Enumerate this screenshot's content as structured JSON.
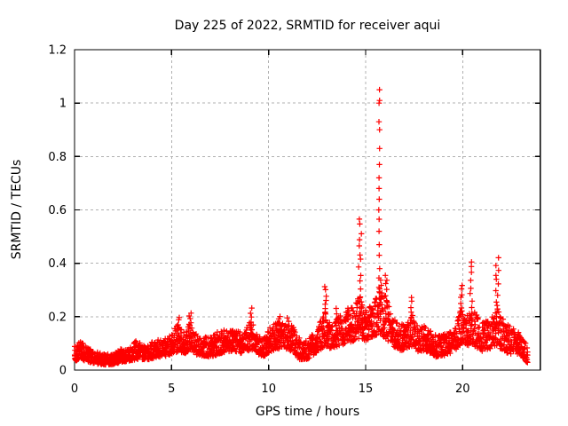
{
  "page": {
    "background_color": "#ffffff",
    "text_color": "#000000"
  },
  "chart_data": {
    "type": "scatter",
    "title": "Day 225 of 2022, SRMTID for receiver aqui",
    "xlabel": "GPS time / hours",
    "ylabel": "SRMTID / TECUs",
    "xlim": [
      0,
      24
    ],
    "ylim": [
      0,
      1.2
    ],
    "grid": true,
    "legend": "none",
    "marker": "plus",
    "marker_color": "#ff0000",
    "grid_color": "#b0b0b0",
    "axis_color": "#000000",
    "xticks": [
      {
        "value": 0,
        "label": "0"
      },
      {
        "value": 5,
        "label": "5"
      },
      {
        "value": 10,
        "label": "10"
      },
      {
        "value": 15,
        "label": "15"
      },
      {
        "value": 20,
        "label": "20"
      }
    ],
    "yticks": [
      {
        "value": 0,
        "label": "0"
      },
      {
        "value": 0.2,
        "label": "0.2"
      },
      {
        "value": 0.4,
        "label": "0.4"
      },
      {
        "value": 0.6,
        "label": "0.6"
      },
      {
        "value": 0.8,
        "label": "0.8"
      },
      {
        "value": 1,
        "label": "1"
      },
      {
        "value": 1.2,
        "label": "1.2"
      }
    ],
    "data_start_hour": 0,
    "data_end_hour": 23.35,
    "sample_step_hours": 0.02,
    "envelope": [
      [
        0.0,
        0.03,
        0.09
      ],
      [
        0.3,
        0.04,
        0.11
      ],
      [
        0.6,
        0.03,
        0.09
      ],
      [
        1.0,
        0.025,
        0.07
      ],
      [
        1.5,
        0.02,
        0.06
      ],
      [
        2.0,
        0.02,
        0.06
      ],
      [
        2.4,
        0.03,
        0.08
      ],
      [
        2.8,
        0.03,
        0.08
      ],
      [
        3.15,
        0.04,
        0.11
      ],
      [
        3.5,
        0.04,
        0.1
      ],
      [
        3.9,
        0.04,
        0.1
      ],
      [
        4.3,
        0.05,
        0.12
      ],
      [
        4.7,
        0.05,
        0.12
      ],
      [
        5.0,
        0.06,
        0.14
      ],
      [
        5.35,
        0.07,
        0.18
      ],
      [
        5.6,
        0.06,
        0.14
      ],
      [
        5.95,
        0.07,
        0.19
      ],
      [
        6.2,
        0.06,
        0.14
      ],
      [
        6.6,
        0.05,
        0.12
      ],
      [
        7.0,
        0.05,
        0.13
      ],
      [
        7.5,
        0.06,
        0.15
      ],
      [
        7.9,
        0.07,
        0.16
      ],
      [
        8.3,
        0.07,
        0.15
      ],
      [
        8.7,
        0.06,
        0.14
      ],
      [
        9.1,
        0.08,
        0.19
      ],
      [
        9.4,
        0.06,
        0.13
      ],
      [
        9.8,
        0.05,
        0.12
      ],
      [
        10.1,
        0.07,
        0.17
      ],
      [
        10.5,
        0.08,
        0.18
      ],
      [
        10.9,
        0.08,
        0.17
      ],
      [
        11.2,
        0.07,
        0.17
      ],
      [
        11.6,
        0.04,
        0.12
      ],
      [
        12.0,
        0.04,
        0.11
      ],
      [
        12.4,
        0.06,
        0.15
      ],
      [
        12.9,
        0.09,
        0.22
      ],
      [
        13.2,
        0.08,
        0.18
      ],
      [
        13.6,
        0.09,
        0.2
      ],
      [
        14.0,
        0.1,
        0.22
      ],
      [
        14.4,
        0.11,
        0.24
      ],
      [
        14.7,
        0.12,
        0.28
      ],
      [
        15.0,
        0.11,
        0.23
      ],
      [
        15.4,
        0.12,
        0.25
      ],
      [
        15.7,
        0.14,
        0.3
      ],
      [
        16.0,
        0.12,
        0.28
      ],
      [
        16.3,
        0.1,
        0.22
      ],
      [
        16.7,
        0.07,
        0.17
      ],
      [
        17.1,
        0.08,
        0.18
      ],
      [
        17.4,
        0.09,
        0.21
      ],
      [
        17.7,
        0.07,
        0.16
      ],
      [
        18.1,
        0.07,
        0.17
      ],
      [
        18.5,
        0.05,
        0.14
      ],
      [
        18.9,
        0.05,
        0.13
      ],
      [
        19.3,
        0.06,
        0.14
      ],
      [
        19.7,
        0.08,
        0.19
      ],
      [
        19.95,
        0.1,
        0.24
      ],
      [
        20.3,
        0.09,
        0.21
      ],
      [
        20.6,
        0.09,
        0.22
      ],
      [
        21.0,
        0.07,
        0.18
      ],
      [
        21.4,
        0.08,
        0.19
      ],
      [
        21.8,
        0.09,
        0.23
      ],
      [
        22.1,
        0.07,
        0.19
      ],
      [
        22.5,
        0.06,
        0.16
      ],
      [
        22.9,
        0.06,
        0.14
      ],
      [
        23.2,
        0.04,
        0.11
      ],
      [
        23.35,
        0.02,
        0.08
      ]
    ],
    "spikes": [
      {
        "t": 5.35,
        "top": 0.21,
        "n": 4,
        "w": 0.1
      },
      {
        "t": 5.95,
        "top": 0.225,
        "n": 5,
        "w": 0.12
      },
      {
        "t": 9.1,
        "top": 0.24,
        "n": 5,
        "w": 0.08
      },
      {
        "t": 10.55,
        "top": 0.215,
        "n": 4,
        "w": 0.1
      },
      {
        "t": 11.0,
        "top": 0.21,
        "n": 4,
        "w": 0.1
      },
      {
        "t": 12.93,
        "top": 0.33,
        "n": 8,
        "w": 0.1
      },
      {
        "t": 13.5,
        "top": 0.245,
        "n": 4,
        "w": 0.1
      },
      {
        "t": 14.05,
        "top": 0.245,
        "n": 4,
        "w": 0.08
      },
      {
        "t": 14.7,
        "top": 0.59,
        "n": 13,
        "w": 0.16
      },
      {
        "t": 15.7,
        "w": 0.05,
        "ys": [
          0.24,
          0.27,
          0.31,
          0.345,
          0.38,
          0.43,
          0.47,
          0.52,
          0.565,
          0.6,
          0.64,
          0.68,
          0.72,
          0.77,
          0.83,
          0.9,
          0.93,
          1.0,
          1.01,
          1.05
        ]
      },
      {
        "t": 15.78,
        "top": 0.345,
        "n": 6,
        "w": 0.12
      },
      {
        "t": 16.05,
        "top": 0.375,
        "n": 7,
        "w": 0.1
      },
      {
        "t": 17.35,
        "top": 0.285,
        "n": 6,
        "w": 0.1
      },
      {
        "t": 19.9,
        "top": 0.33,
        "n": 8,
        "w": 0.15
      },
      {
        "t": 20.45,
        "top": 0.425,
        "n": 10,
        "w": 0.14
      },
      {
        "t": 21.78,
        "top": 0.43,
        "n": 12,
        "w": 0.18
      }
    ]
  }
}
